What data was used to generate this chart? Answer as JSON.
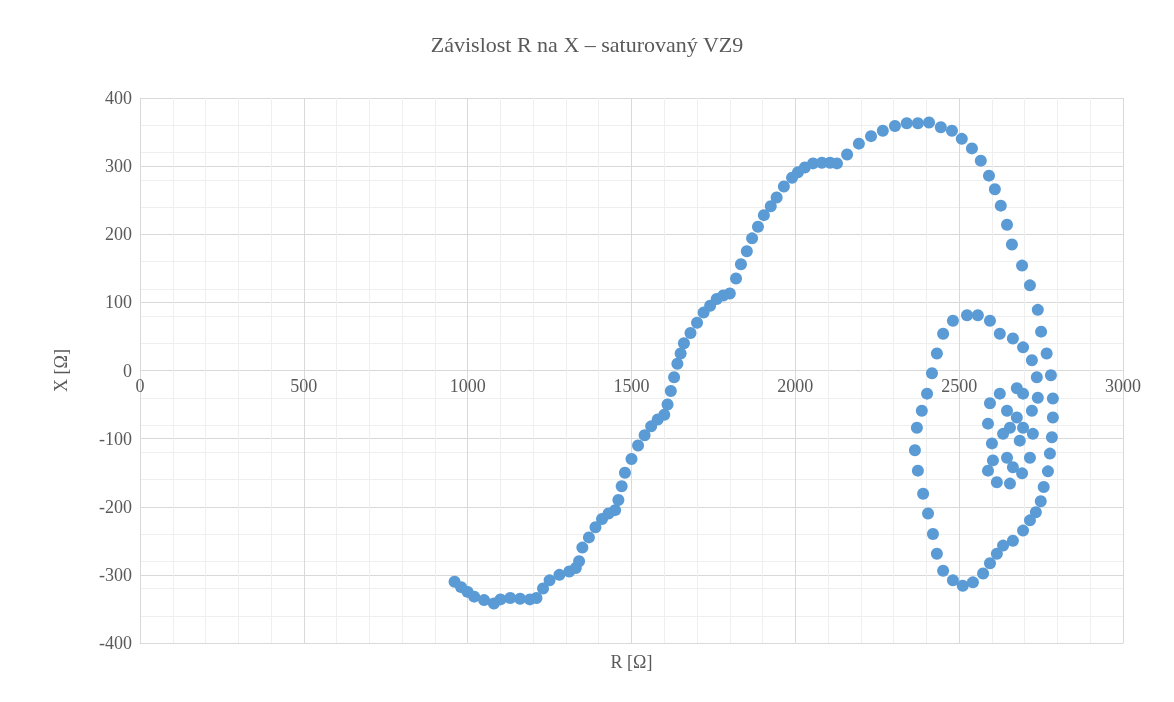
{
  "chart_data": {
    "type": "scatter",
    "title": "Závislost R na X – saturovaný VZ9",
    "xlabel": "R [Ω]",
    "ylabel": "X [Ω]",
    "xlim": [
      0,
      3000
    ],
    "xticks": [
      0,
      500,
      1000,
      1500,
      2000,
      2500,
      3000
    ],
    "ylim": [
      -400,
      400
    ],
    "yticks": [
      -400,
      -300,
      -200,
      -100,
      0,
      100,
      200,
      300,
      400
    ],
    "grid": true,
    "marker": "circle",
    "series": [
      {
        "color": "#5b9bd5",
        "x": [
          960,
          980,
          1000,
          1020,
          1050,
          1080,
          1100,
          1130,
          1160,
          1190,
          1210,
          1230,
          1250,
          1280,
          1310,
          1330,
          1340,
          1350,
          1370,
          1390,
          1410,
          1430,
          1450,
          1460,
          1470,
          1480,
          1500,
          1520,
          1540,
          1560,
          1580,
          1600,
          1610,
          1620,
          1630,
          1640,
          1650,
          1660,
          1680,
          1700,
          1720,
          1740,
          1760,
          1780,
          1800,
          1819,
          1834,
          1852,
          1868,
          1886,
          1904,
          1925,
          1943,
          1965,
          1990,
          2008,
          2029,
          2054,
          2081,
          2106,
          2127,
          2158,
          2194,
          2231,
          2267,
          2304,
          2340,
          2374,
          2408,
          2444,
          2478,
          2508,
          2539,
          2566,
          2591,
          2609,
          2627,
          2646,
          2661,
          2692,
          2716,
          2740,
          2750,
          2767,
          2780,
          2786,
          2786,
          2783,
          2777,
          2771,
          2758,
          2749,
          2734,
          2716,
          2695,
          2664,
          2634,
          2615,
          2594,
          2573,
          2542,
          2511,
          2481,
          2451,
          2432,
          2420,
          2405,
          2390,
          2374,
          2365,
          2371,
          2386,
          2402,
          2417,
          2432,
          2451,
          2481,
          2524,
          2557,
          2594,
          2624,
          2664,
          2695,
          2722,
          2737,
          2740,
          2676,
          2624,
          2594,
          2588,
          2600,
          2603,
          2588,
          2615,
          2655,
          2692,
          2716,
          2725,
          2722,
          2695,
          2646,
          2634,
          2646,
          2664,
          2685,
          2676,
          2695,
          2655
        ],
        "values": [
          -310,
          -318,
          -325,
          -332,
          -337,
          -342,
          -336,
          -334,
          -335,
          -336,
          -334,
          -320,
          -308,
          -300,
          -295,
          -290,
          -280,
          -260,
          -245,
          -230,
          -218,
          -210,
          -205,
          -190,
          -170,
          -150,
          -130,
          -110,
          -95,
          -82,
          -72,
          -65,
          -50,
          -30,
          -10,
          10,
          25,
          40,
          55,
          70,
          85,
          95,
          105,
          110,
          113,
          135,
          156,
          175,
          194,
          211,
          228,
          241,
          254,
          270,
          283,
          291,
          298,
          304,
          305,
          305,
          304,
          317,
          333,
          344,
          352,
          359,
          363,
          363,
          364,
          357,
          352,
          340,
          326,
          308,
          286,
          266,
          242,
          214,
          185,
          154,
          125,
          89,
          57,
          25,
          -7,
          -41,
          -69,
          -98,
          -122,
          -148,
          -171,
          -192,
          -208,
          -220,
          -235,
          -250,
          -257,
          -269,
          -283,
          -298,
          -311,
          -316,
          -308,
          -294,
          -269,
          -240,
          -210,
          -181,
          -147,
          -117,
          -84,
          -59,
          -34,
          -4,
          25,
          54,
          73,
          81,
          81,
          73,
          54,
          47,
          34,
          15,
          -10,
          -40,
          -26,
          -34,
          -48,
          -78,
          -107,
          -132,
          -147,
          -164,
          -166,
          -151,
          -128,
          -93,
          -59,
          -34,
          -59,
          -93,
          -128,
          -142,
          -103,
          -69,
          -84,
          -84
        ]
      }
    ]
  }
}
